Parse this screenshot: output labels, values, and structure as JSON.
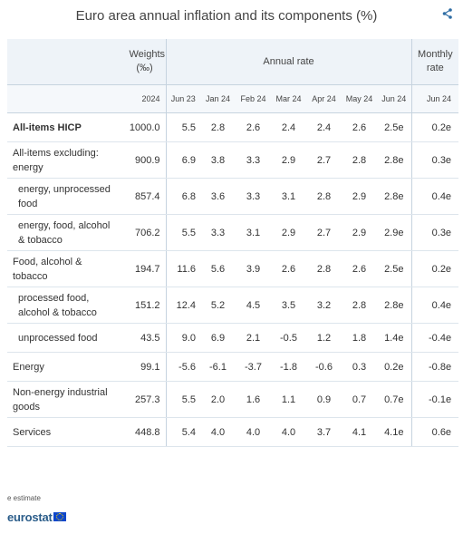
{
  "title": "Euro area annual inflation and its components (%)",
  "header": {
    "weights": "Weights (‰)",
    "annual_rate": "Annual rate",
    "monthly_rate": "Monthly rate",
    "weights_year": "2024",
    "annual_cols": [
      "Jun 23",
      "Jan 24",
      "Feb 24",
      "Mar 24",
      "Apr 24",
      "May 24",
      "Jun 24"
    ],
    "monthly_col": "Jun 24"
  },
  "rows": [
    {
      "label": "All-items HICP",
      "weight": "1000.0",
      "values": [
        "5.5",
        "2.8",
        "2.6",
        "2.4",
        "2.4",
        "2.6",
        "2.5e"
      ],
      "monthly": "0.2e"
    },
    {
      "label": "All-items excluding: energy",
      "weight": "900.9",
      "values": [
        "6.9",
        "3.8",
        "3.3",
        "2.9",
        "2.7",
        "2.8",
        "2.8e"
      ],
      "monthly": "0.3e"
    },
    {
      "label": "energy, unprocessed food",
      "weight": "857.4",
      "values": [
        "6.8",
        "3.6",
        "3.3",
        "3.1",
        "2.8",
        "2.9",
        "2.8e"
      ],
      "monthly": "0.4e"
    },
    {
      "label": "energy, food, alcohol & tobacco",
      "weight": "706.2",
      "values": [
        "5.5",
        "3.3",
        "3.1",
        "2.9",
        "2.7",
        "2.9",
        "2.9e"
      ],
      "monthly": "0.3e"
    },
    {
      "label": "Food, alcohol & tobacco",
      "weight": "194.7",
      "values": [
        "11.6",
        "5.6",
        "3.9",
        "2.6",
        "2.8",
        "2.6",
        "2.5e"
      ],
      "monthly": "0.2e"
    },
    {
      "label": "processed food, alcohol & tobacco",
      "weight": "151.2",
      "values": [
        "12.4",
        "5.2",
        "4.5",
        "3.5",
        "3.2",
        "2.8",
        "2.8e"
      ],
      "monthly": "0.4e"
    },
    {
      "label": "unprocessed food",
      "weight": "43.5",
      "values": [
        "9.0",
        "6.9",
        "2.1",
        "-0.5",
        "1.2",
        "1.8",
        "1.4e"
      ],
      "monthly": "-0.4e"
    },
    {
      "label": "Energy",
      "weight": "99.1",
      "values": [
        "-5.6",
        "-6.1",
        "-3.7",
        "-1.8",
        "-0.6",
        "0.3",
        "0.2e"
      ],
      "monthly": "-0.8e"
    },
    {
      "label": "Non-energy industrial goods",
      "weight": "257.3",
      "values": [
        "5.5",
        "2.0",
        "1.6",
        "1.1",
        "0.9",
        "0.7",
        "0.7e"
      ],
      "monthly": "-0.1e"
    },
    {
      "label": "Services",
      "weight": "448.8",
      "values": [
        "5.4",
        "4.0",
        "4.0",
        "4.0",
        "3.7",
        "4.1",
        "4.1e"
      ],
      "monthly": "0.6e"
    }
  ],
  "footnote": "e estimate",
  "logo_text": "eurostat",
  "icons": {
    "share": "share-icon",
    "logo_flag": "eu-flag-icon"
  }
}
